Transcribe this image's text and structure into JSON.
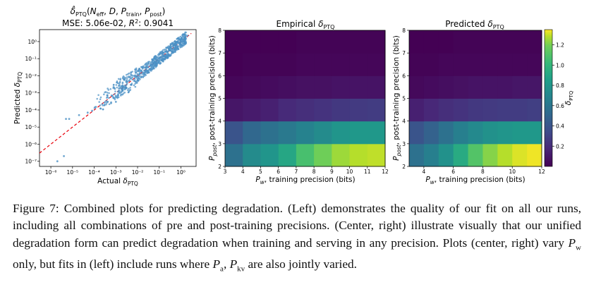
{
  "caption": {
    "figure_label": "Figure 7:",
    "text": "Combined plots for predicting degradation. (Left) demonstrates the quality of our fit on all our runs, including all combinations of pre and post-training precisions. (Center, right) illustrate visually that our unified degradation form can predict degradation when training and serving in any precision. Plots (center, right) vary P_w only, but fits in (left) include runs where P_a, P_kv are also jointly varied."
  },
  "chart_data": [
    {
      "type": "scatter",
      "title": "δ̂_PTQ(N_eff, D, P_train, P_post)",
      "subtitle": "MSE: 5.06e-02, R²: 0.9041",
      "xlabel": "Actual δ_PTQ",
      "ylabel": "Predicted δ_PTQ",
      "xscale": "log",
      "yscale": "log",
      "xlim": [
        3e-07,
        5
      ],
      "ylim": [
        5e-08,
        5
      ],
      "xticks": [
        "10⁻⁶",
        "10⁻⁵",
        "10⁻⁴",
        "10⁻³",
        "10⁻²",
        "10⁻¹",
        "10⁰"
      ],
      "yticks": [
        "10⁻⁷",
        "10⁻⁶",
        "10⁻⁵",
        "10⁻⁴",
        "10⁻³",
        "10⁻²",
        "10⁻¹",
        "10⁰"
      ],
      "reference_line": "y = x (dashed, red)",
      "point_color": "#4a90c4",
      "line_color": "#e8000b",
      "points": [
        [
          2e-06,
          1e-07
        ],
        [
          4e-06,
          2e-07
        ],
        [
          5e-06,
          3e-05
        ],
        [
          7e-06,
          3e-05
        ],
        [
          2e-05,
          5e-05
        ],
        [
          5e-05,
          7e-05
        ],
        [
          8e-05,
          9e-05
        ],
        [
          0.00012,
          0.00015
        ],
        [
          0.0002,
          0.00012
        ],
        [
          0.0003,
          0.0002
        ],
        [
          0.0004,
          0.0003
        ],
        [
          0.0006,
          0.00025
        ],
        [
          0.0008,
          0.0005
        ],
        [
          0.001,
          0.0003
        ],
        [
          0.0015,
          0.001
        ],
        [
          0.002,
          0.0008
        ],
        [
          0.003,
          0.002
        ],
        [
          0.004,
          0.005
        ],
        [
          0.005,
          0.003
        ],
        [
          0.007,
          0.01
        ],
        [
          0.01,
          0.006
        ],
        [
          0.015,
          0.02
        ],
        [
          0.02,
          0.03
        ],
        [
          0.03,
          0.015
        ],
        [
          0.04,
          0.05
        ],
        [
          0.05,
          0.08
        ],
        [
          0.07,
          0.04
        ],
        [
          0.1,
          0.12
        ],
        [
          0.15,
          0.1
        ],
        [
          0.2,
          0.25
        ],
        [
          0.3,
          0.3
        ],
        [
          0.4,
          0.35
        ],
        [
          0.5,
          0.6
        ],
        [
          0.7,
          0.5
        ],
        [
          1.0,
          1.0
        ],
        [
          1.3,
          1.2
        ],
        [
          1.6,
          1.8
        ],
        [
          2.0,
          2.2
        ]
      ]
    },
    {
      "type": "heatmap",
      "title": "Empirical δ_PTQ",
      "xlabel": "P_w, training precision (bits)",
      "ylabel": "P_post, post-training precision (bits)",
      "x": [
        3,
        4,
        5,
        6,
        7,
        8,
        9,
        10,
        11,
        12
      ],
      "y": [
        2,
        3,
        4,
        5,
        6,
        7,
        8
      ],
      "xlim": [
        3,
        12
      ],
      "ylim": [
        2,
        8
      ],
      "colormap": "viridis",
      "clim": [
        0,
        1.35
      ],
      "rows_bottom_to_top": [
        [
          0.5,
          0.65,
          0.7,
          0.8,
          0.95,
          1.05,
          1.15,
          1.2,
          1.22
        ],
        [
          0.35,
          0.45,
          0.5,
          0.55,
          0.6,
          0.65,
          0.7,
          0.72,
          0.72
        ],
        [
          0.08,
          0.1,
          0.12,
          0.16,
          0.18,
          0.2,
          0.22,
          0.23,
          0.24
        ],
        [
          0.02,
          0.03,
          0.04,
          0.05,
          0.06,
          0.06,
          0.07,
          0.07,
          0.07
        ],
        [
          0.0,
          0.01,
          0.01,
          0.01,
          0.02,
          0.02,
          0.02,
          0.02,
          0.02
        ],
        [
          0.0,
          0.0,
          0.0,
          0.0,
          0.01,
          0.01,
          0.01,
          0.01,
          0.01
        ]
      ]
    },
    {
      "type": "heatmap",
      "title": "Predicted δ_PTQ",
      "xlabel": "P_w, training precision (bits)",
      "ylabel": "P_post, post-training precision (bits)",
      "x": [
        3,
        4,
        5,
        6,
        7,
        8,
        9,
        10,
        11,
        12
      ],
      "y": [
        2,
        3,
        4,
        5,
        6,
        7,
        8
      ],
      "xlim": [
        3,
        12
      ],
      "ylim": [
        2,
        8
      ],
      "xticks": [
        4,
        6,
        8,
        10,
        12
      ],
      "colormap": "viridis",
      "clim": [
        0,
        1.35
      ],
      "colorbar_label": "δ_PTQ",
      "colorbar_ticks": [
        0.2,
        0.4,
        0.6,
        0.8,
        1.0,
        1.2
      ],
      "rows_bottom_to_top": [
        [
          0.5,
          0.58,
          0.68,
          0.82,
          0.98,
          1.1,
          1.2,
          1.28,
          1.32
        ],
        [
          0.35,
          0.42,
          0.5,
          0.58,
          0.64,
          0.68,
          0.7,
          0.72,
          0.72
        ],
        [
          0.12,
          0.15,
          0.18,
          0.2,
          0.22,
          0.23,
          0.24,
          0.24,
          0.25
        ],
        [
          0.03,
          0.04,
          0.05,
          0.06,
          0.07,
          0.07,
          0.07,
          0.08,
          0.08
        ],
        [
          0.01,
          0.01,
          0.02,
          0.02,
          0.02,
          0.02,
          0.02,
          0.02,
          0.02
        ],
        [
          0.0,
          0.0,
          0.0,
          0.01,
          0.01,
          0.01,
          0.01,
          0.01,
          0.01
        ]
      ]
    }
  ]
}
